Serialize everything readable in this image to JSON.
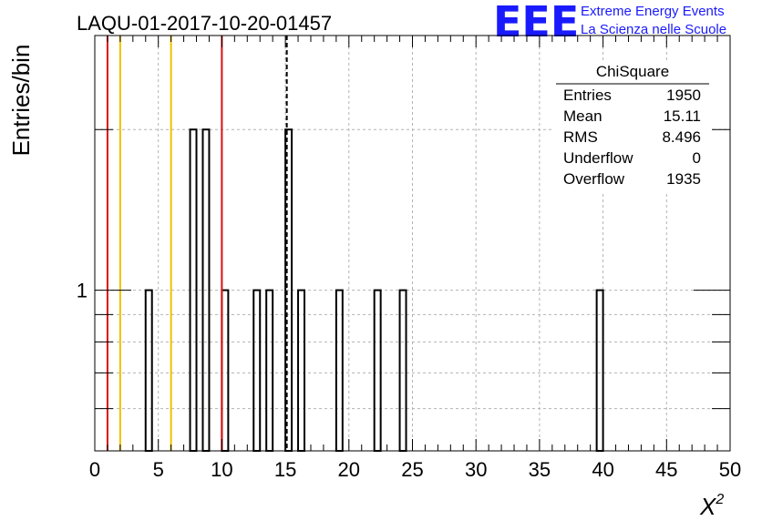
{
  "chart_data": {
    "type": "bar",
    "title": "LAQU-01-2017-10-20-01457",
    "xlabel": "X",
    "xlabel_sup": "2",
    "ylabel": "Entries/bin",
    "xlim": [
      0,
      50
    ],
    "ylim": [
      0.5,
      3
    ],
    "log_y": true,
    "grid": true,
    "x_ticks": [
      "0",
      "5",
      "10",
      "15",
      "20",
      "25",
      "30",
      "35",
      "40",
      "45",
      "50"
    ],
    "y_ticks": [
      "1"
    ],
    "bin_width": 0.5,
    "series": [
      {
        "values": [
          {
            "x": 4.25,
            "y": 1
          },
          {
            "x": 7.75,
            "y": 2
          },
          {
            "x": 8.75,
            "y": 2
          },
          {
            "x": 10.25,
            "y": 1
          },
          {
            "x": 12.75,
            "y": 1
          },
          {
            "x": 13.75,
            "y": 1
          },
          {
            "x": 15.25,
            "y": 2
          },
          {
            "x": 16.25,
            "y": 1
          },
          {
            "x": 19.25,
            "y": 1
          },
          {
            "x": 22.25,
            "y": 1
          },
          {
            "x": 24.25,
            "y": 1
          },
          {
            "x": 39.75,
            "y": 1
          }
        ]
      }
    ],
    "vertical_lines": [
      {
        "x": 1,
        "color": "#dd1111",
        "style": "solid"
      },
      {
        "x": 2,
        "color": "#f0c000",
        "style": "solid"
      },
      {
        "x": 6,
        "color": "#f0c000",
        "style": "solid"
      },
      {
        "x": 10,
        "color": "#dd1111",
        "style": "solid"
      },
      {
        "x": 15.11,
        "color": "#000000",
        "style": "dashed"
      }
    ],
    "stats_box": {
      "title": "ChiSquare",
      "rows": [
        {
          "label": "Entries",
          "value": "1950"
        },
        {
          "label": "Mean",
          "value": "15.11"
        },
        {
          "label": "RMS",
          "value": "8.496"
        },
        {
          "label": "Underflow",
          "value": "0"
        },
        {
          "label": "Overflow",
          "value": "1935"
        }
      ]
    }
  },
  "logo": {
    "text": "EEE",
    "line1": "Extreme Energy Events",
    "line2": "La Scienza nelle Scuole",
    "color": "#1a1aff"
  }
}
